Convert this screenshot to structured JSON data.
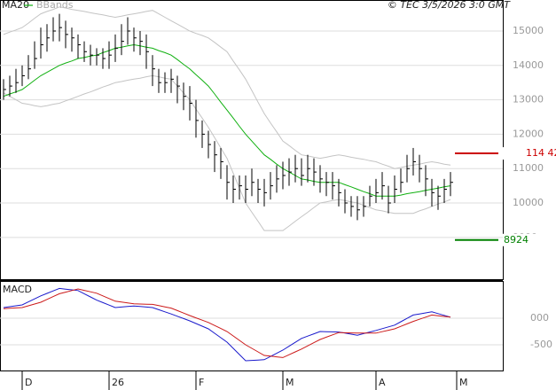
{
  "chart_data": [
    {
      "type": "ohlc",
      "credit": "© TEC 3/5/2026 3:0 GMT",
      "categories": [
        null,
        null,
        null,
        null,
        null,
        null,
        null,
        null,
        null,
        null,
        null,
        null,
        null,
        null,
        null,
        null,
        null,
        null,
        null,
        null,
        null,
        null,
        null,
        null,
        null,
        null,
        null,
        null,
        null,
        null,
        null,
        null,
        null,
        null,
        null,
        null,
        null,
        null,
        null,
        null,
        null,
        null,
        null,
        null,
        null,
        null,
        null,
        null,
        null,
        null,
        null,
        null,
        null,
        null,
        null,
        null,
        null,
        null,
        null,
        null,
        null,
        null,
        null,
        null,
        null,
        null,
        null,
        null,
        null,
        null,
        null,
        null,
        null
      ],
      "xticks": [
        {
          "value": 3,
          "label": "D"
        },
        {
          "value": 17,
          "label": "26"
        },
        {
          "value": 31,
          "label": "F"
        },
        {
          "value": 45,
          "label": "M"
        },
        {
          "value": 60,
          "label": "A"
        },
        {
          "value": 73,
          "label": "M"
        }
      ],
      "xlim": [
        -0.57,
        80.43
      ],
      "high": [
        13600,
        13700,
        13900,
        14000,
        14300,
        14700,
        15100,
        15200,
        15400,
        15500,
        15300,
        15100,
        14900,
        14700,
        14600,
        14500,
        14500,
        14700,
        14900,
        15200,
        15400,
        15100,
        15000,
        14900,
        14300,
        13900,
        13800,
        13900,
        13700,
        13500,
        13400,
        13000,
        12400,
        12100,
        11800,
        11600,
        11100,
        10800,
        10800,
        10800,
        11000,
        10700,
        10700,
        10900,
        11100,
        11200,
        11300,
        11400,
        11300,
        11400,
        11300,
        11100,
        10900,
        10900,
        10700,
        10400,
        10200,
        10200,
        10200,
        10500,
        10700,
        10900,
        10500,
        10800,
        11000,
        11400,
        11600,
        11400,
        11100,
        10700,
        10500,
        10700,
        10900
      ],
      "low": [
        13000,
        13100,
        13200,
        13400,
        13600,
        13900,
        14200,
        14400,
        14700,
        14700,
        14500,
        14400,
        14200,
        14100,
        14000,
        14000,
        13900,
        13900,
        14100,
        14300,
        14600,
        14400,
        14300,
        13900,
        13400,
        13200,
        13200,
        13200,
        12900,
        12700,
        12400,
        11900,
        11600,
        11300,
        10900,
        10700,
        10100,
        10000,
        10100,
        10000,
        10200,
        10000,
        9900,
        10100,
        10300,
        10400,
        10500,
        10600,
        10500,
        10600,
        10500,
        10300,
        10200,
        10100,
        9900,
        9700,
        9600,
        9500,
        9600,
        9900,
        10000,
        10100,
        9700,
        10000,
        10300,
        10600,
        10800,
        10600,
        10200,
        9900,
        9800,
        10000,
        10200
      ],
      "close": [
        13300,
        13400,
        13500,
        13700,
        13900,
        14200,
        14600,
        14800,
        15000,
        15100,
        14900,
        14800,
        14600,
        14400,
        14300,
        14300,
        14200,
        14300,
        14500,
        14700,
        15000,
        14800,
        14700,
        14400,
        13900,
        13500,
        13500,
        13600,
        13400,
        13100,
        12900,
        12400,
        12000,
        11700,
        11400,
        11200,
        10600,
        10400,
        10500,
        10400,
        10600,
        10400,
        10300,
        10500,
        10700,
        10800,
        10900,
        11000,
        10800,
        11000,
        10900,
        10700,
        10600,
        10500,
        10300,
        10000,
        9900,
        9800,
        9900,
        10200,
        10300,
        10500,
        10000,
        10400,
        10600,
        11000,
        11200,
        11000,
        10700,
        10300,
        10200,
        10400,
        10600
      ],
      "series": [
        {
          "name": "MA20",
          "color": "#10b010",
          "values": [
            13100,
            13170,
            13230,
            13300,
            13430,
            13570,
            13700,
            13800,
            13900,
            14000,
            14070,
            14130,
            14200,
            14230,
            14270,
            14300,
            14370,
            14430,
            14500,
            14530,
            14570,
            14600,
            14570,
            14530,
            14500,
            14430,
            14370,
            14300,
            14170,
            14030,
            13900,
            13730,
            13570,
            13400,
            13170,
            12930,
            12700,
            12470,
            12230,
            12000,
            11800,
            11600,
            11400,
            11270,
            11130,
            11000,
            10900,
            10800,
            10700,
            10670,
            10630,
            10600,
            10600,
            10600,
            10600,
            10530,
            10470,
            10400,
            10330,
            10270,
            10200,
            10200,
            10200,
            10200,
            10230,
            10270,
            10300,
            10330,
            10370,
            10400,
            10430,
            10470,
            10500
          ]
        },
        {
          "name": "BBands",
          "color": "#c4c4c4",
          "upper": [
            14900,
            14970,
            15030,
            15100,
            15230,
            15370,
            15500,
            15570,
            15630,
            15700,
            15670,
            15630,
            15600,
            15570,
            15530,
            15500,
            15470,
            15430,
            15400,
            15430,
            15470,
            15500,
            15530,
            15570,
            15600,
            15500,
            15400,
            15300,
            15200,
            15100,
            15000,
            14930,
            14870,
            14800,
            14670,
            14530,
            14400,
            14130,
            13870,
            13600,
            13270,
            12930,
            12600,
            12330,
            12070,
            11800,
            11670,
            11530,
            11400,
            11370,
            11330,
            11300,
            11330,
            11370,
            11400,
            11370,
            11330,
            11300,
            11270,
            11230,
            11200,
            11130,
            11070,
            11000,
            11030,
            11070,
            11100,
            11130,
            11170,
            11200,
            11170,
            11130,
            11100
          ],
          "lower": [
            13200,
            13100,
            13000,
            12900,
            12870,
            12830,
            12800,
            12830,
            12870,
            12900,
            12970,
            13030,
            13100,
            13170,
            13230,
            13300,
            13370,
            13430,
            13500,
            13530,
            13570,
            13600,
            13630,
            13670,
            13700,
            13670,
            13630,
            13600,
            13400,
            13200,
            13000,
            12730,
            12470,
            12200,
            11900,
            11600,
            11300,
            10870,
            10430,
            10000,
            9730,
            9470,
            9200,
            9200,
            9200,
            9200,
            9330,
            9470,
            9600,
            9730,
            9870,
            10000,
            10030,
            10070,
            10100,
            10070,
            10030,
            10000,
            9930,
            9870,
            9800,
            9770,
            9730,
            9700,
            9700,
            9700,
            9700,
            9770,
            9830,
            9900,
            9970,
            10030,
            10100
          ]
        }
      ],
      "levels": [
        {
          "value": 11442,
          "label": "114 42",
          "color": "#cc0000"
        },
        {
          "value": 8924,
          "label": "8924",
          "color": "#008000"
        }
      ],
      "ylim": [
        7784,
        15902
      ],
      "yticks": [
        15000,
        14000,
        13000,
        12000,
        11000,
        10000,
        9000
      ],
      "grid": true
    },
    {
      "type": "macd",
      "title": "MACD",
      "ylim": [
        -983,
        700
      ],
      "yticks": [
        {
          "value": 0,
          "label": "000"
        },
        -500
      ],
      "series": [
        {
          "color": "#1a1acc",
          "values": [
            200,
            217,
            233,
            250,
            307,
            363,
            420,
            467,
            513,
            560,
            547,
            533,
            520,
            460,
            400,
            340,
            293,
            247,
            200,
            210,
            220,
            230,
            220,
            210,
            200,
            160,
            120,
            80,
            37,
            -7,
            -50,
            -100,
            -150,
            -200,
            -283,
            -367,
            -450,
            -567,
            -683,
            -800,
            -793,
            -787,
            -780,
            -720,
            -660,
            -600,
            -527,
            -453,
            -380,
            -337,
            -293,
            -250,
            -253,
            -257,
            -260,
            -280,
            -300,
            -320,
            -290,
            -260,
            -230,
            -197,
            -163,
            -130,
            -67,
            -3,
            60,
            80,
            100,
            120,
            87,
            53,
            20
          ]
        },
        {
          "color": "#cc1a1a",
          "values": [
            180,
            187,
            193,
            200,
            233,
            267,
            300,
            353,
            407,
            460,
            490,
            520,
            550,
            523,
            497,
            470,
            420,
            370,
            320,
            303,
            287,
            270,
            267,
            263,
            260,
            237,
            213,
            190,
            143,
            97,
            50,
            7,
            -37,
            -80,
            -137,
            -193,
            -250,
            -333,
            -417,
            -500,
            -567,
            -633,
            -700,
            -713,
            -727,
            -740,
            -687,
            -633,
            -580,
            -520,
            -460,
            -400,
            -357,
            -313,
            -270,
            -273,
            -277,
            -280,
            -280,
            -280,
            -280,
            -253,
            -227,
            -200,
            -153,
            -107,
            -60,
            -20,
            20,
            60,
            47,
            33,
            20
          ]
        }
      ]
    }
  ]
}
